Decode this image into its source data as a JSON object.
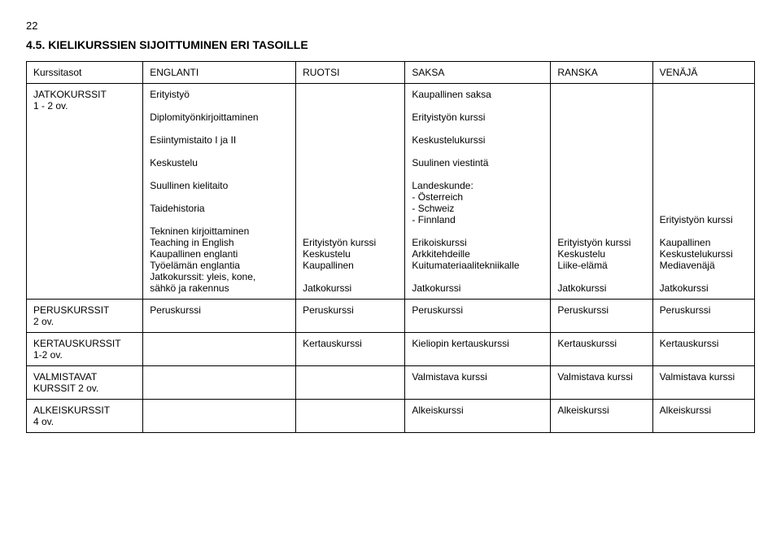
{
  "page_number": "22",
  "heading": "4.5. KIELIKURSSIEN SIJOITTUMINEN ERI TASOILLE",
  "header_row": [
    "Kurssitasot",
    "ENGLANTI",
    "RUOTSI",
    "SAKSA",
    "RANSKA",
    "VENÄJÄ"
  ],
  "rows": [
    {
      "label": "JATKOKURSSIT\n1 - 2 ov.",
      "cells": [
        "Erityistyö\n\nDiplomityönkirjoittaminen\n\nEsiintymistaito I ja II\n\nKeskustelu\n\nSuullinen kielitaito\n\nTaidehistoria\n\nTekninen kirjoittaminen\nTeaching in English\nKaupallinen englanti\nTyöelämän englantia\nJatkokurssit: yleis, kone,\n  sähkö ja rakennus",
        "\n\n\n\n\n\n\n\n\n\n\n\n\nErityistyön kurssi\nKeskustelu\nKaupallinen\n\nJatkokurssi",
        "Kaupallinen saksa\n\nErityistyön kurssi\n\nKeskustelukurssi\n\nSuulinen viestintä\n\nLandeskunde:\n  - Österreich\n  - Schweiz\n  - Finnland\n\nErikoiskurssi\nArkkitehdeille\nKuitumateriaalitekniikalle\n\nJatkokurssi",
        "\n\n\n\n\n\n\n\n\n\n\n\n\nErityistyön kurssi\nKeskustelu\nLiike-elämä\n\nJatkokurssi",
        "\n\n\n\n\n\n\n\n\n\n\nErityistyön kurssi\n\nKaupallinen\nKeskustelukurssi\nMediavenäjä\n\nJatkokurssi"
      ]
    },
    {
      "label": "PERUSKURSSIT\n2 ov.",
      "cells": [
        "Peruskurssi",
        "Peruskurssi",
        "Peruskurssi",
        "Peruskurssi",
        "Peruskurssi"
      ]
    },
    {
      "label": "KERTAUSKURSSIT\n1-2 ov.",
      "cells": [
        "",
        "Kertauskurssi",
        "Kieliopin kertauskurssi",
        "Kertauskurssi",
        "Kertauskurssi"
      ]
    },
    {
      "label": "VALMISTAVAT\nKURSSIT 2 ov.",
      "cells": [
        "",
        "",
        "Valmistava kurssi",
        "Valmistava kurssi",
        "Valmistava kurssi"
      ]
    },
    {
      "label": "ALKEISKURSSIT\n4 ov.",
      "cells": [
        "",
        "",
        "Alkeiskurssi",
        "Alkeiskurssi",
        "Alkeiskurssi"
      ]
    }
  ]
}
